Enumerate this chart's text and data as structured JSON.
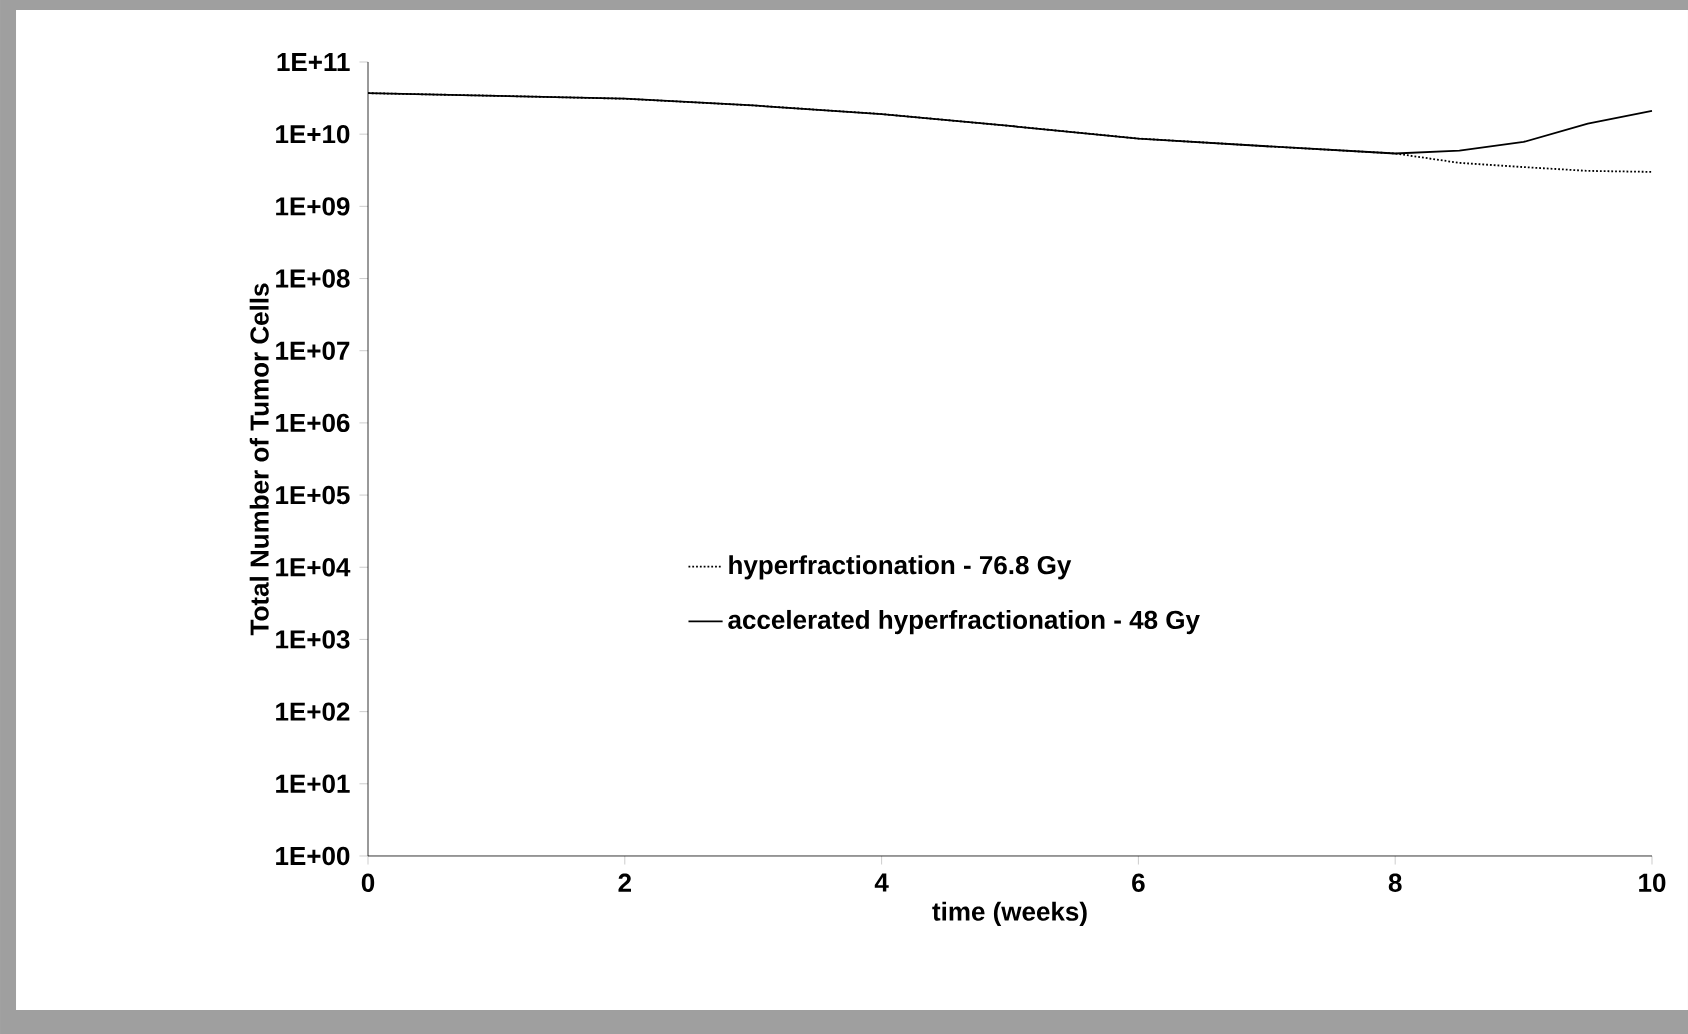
{
  "chart_data": {
    "type": "line",
    "xlabel": "time (weeks)",
    "ylabel": "Total Number of Tumor Cells",
    "log": "y",
    "x": [
      0,
      1,
      2,
      3,
      4,
      5,
      6,
      7,
      8,
      8.5,
      9,
      9.5,
      10
    ],
    "series": [
      {
        "name": "hyperfractionation - 76.8 Gy",
        "color": "#000000",
        "line_style": "dotted",
        "values": [
          37000000000.0,
          34000000000.0,
          31000000000.0,
          25000000000.0,
          19000000000.0,
          13000000000.0,
          8700000000.0,
          6800000000.0,
          5400000000.0,
          4000000000.0,
          3500000000.0,
          3100000000.0,
          3000000000.0
        ]
      },
      {
        "name": "accelerated hyperfractionation - 48 Gy",
        "color": "#000000",
        "line_style": "solid",
        "values": [
          37000000000.0,
          34000000000.0,
          31000000000.0,
          25000000000.0,
          19000000000.0,
          13000000000.0,
          8700000000.0,
          6800000000.0,
          5400000000.0,
          5900000000.0,
          7800000000.0,
          14000000000.0,
          21000000000.0
        ]
      }
    ],
    "xlim": [
      0,
      10
    ],
    "xticks": [
      0,
      2,
      4,
      6,
      8,
      10
    ],
    "ylim": [
      1,
      100000000000.0
    ],
    "yticks": [
      {
        "value": 1,
        "label": "1E+00"
      },
      {
        "value": 10,
        "label": "1E+01"
      },
      {
        "value": 100,
        "label": "1E+02"
      },
      {
        "value": 1000,
        "label": "1E+03"
      },
      {
        "value": 10000,
        "label": "1E+04"
      },
      {
        "value": 100000,
        "label": "1E+05"
      },
      {
        "value": 1000000,
        "label": "1E+06"
      },
      {
        "value": 10000000,
        "label": "1E+07"
      },
      {
        "value": 100000000,
        "label": "1E+08"
      },
      {
        "value": 1000000000,
        "label": "1E+09"
      },
      {
        "value": 10000000000,
        "label": "1E+10"
      },
      {
        "value": 100000000000,
        "label": "1E+11"
      }
    ],
    "grid": false,
    "legend": "center",
    "marker": "none"
  }
}
